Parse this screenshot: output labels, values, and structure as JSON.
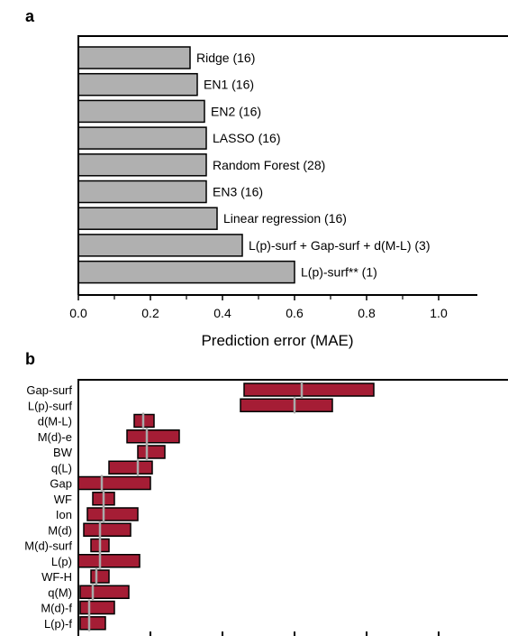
{
  "panel_a": {
    "letter": "a",
    "xlabel": "Prediction error (MAE)"
  },
  "panel_b": {
    "letter": "b"
  },
  "chart_data": [
    {
      "panel": "a",
      "type": "bar",
      "orientation": "horizontal",
      "xlabel": "Prediction error (MAE)",
      "xlim": [
        0.0,
        1.1
      ],
      "xticks": [
        "0.0",
        "0.2",
        "0.4",
        "0.6",
        "0.8",
        "1.0"
      ],
      "bar_color": "#b0b0b0",
      "categories": [
        "Ridge (16)",
        "EN1 (16)",
        "EN2 (16)",
        "LASSO (16)",
        "Random Forest (28)",
        "EN3 (16)",
        "Linear regression (16)",
        "L(p)-surf + Gap-surf + d(M-L) (3)",
        "L(p)-surf** (1)"
      ],
      "values": [
        0.31,
        0.33,
        0.35,
        0.355,
        0.355,
        0.355,
        0.385,
        0.455,
        0.6
      ]
    },
    {
      "panel": "b",
      "type": "bar",
      "subtype": "floating-range",
      "orientation": "horizontal",
      "xlim": [
        0.0,
        1.1
      ],
      "bar_color": "#a51d35",
      "median_color": "#aaaaaa",
      "categories": [
        "Gap-surf",
        "L(p)-surf",
        "d(M-L)",
        "M(d)-e",
        "BW",
        "q(L)",
        "Gap",
        "WF",
        "Ion",
        "M(d)",
        "M(d)-surf",
        "L(p)",
        "WF-H",
        "q(M)",
        "M(d)-f",
        "L(p)-f"
      ],
      "low": [
        0.46,
        0.45,
        0.155,
        0.135,
        0.165,
        0.085,
        0.0,
        0.04,
        0.025,
        0.015,
        0.035,
        0.0,
        0.035,
        0.005,
        0.005,
        0.005
      ],
      "high": [
        0.82,
        0.705,
        0.21,
        0.28,
        0.24,
        0.205,
        0.2,
        0.1,
        0.165,
        0.145,
        0.085,
        0.17,
        0.085,
        0.14,
        0.1,
        0.075
      ],
      "median": [
        0.62,
        0.6,
        0.18,
        0.19,
        0.19,
        0.165,
        0.065,
        0.07,
        0.07,
        0.06,
        0.06,
        0.06,
        0.05,
        0.04,
        0.03,
        0.03
      ]
    }
  ]
}
